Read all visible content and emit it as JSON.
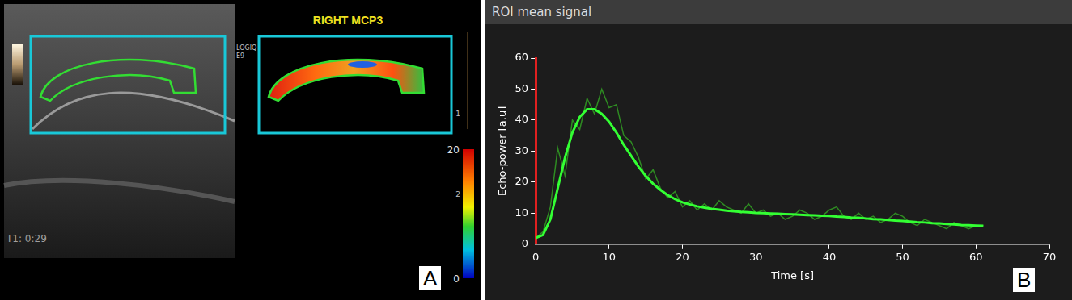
{
  "panel_a": {
    "label": "A",
    "title": "RIGHT MCP3",
    "device": [
      "LOGIQ",
      "E9"
    ],
    "timer": "T1: 0:29",
    "depth_marks": [
      1,
      2
    ],
    "color_bar": {
      "range": [
        0,
        20
      ],
      "ticks": [
        0,
        20
      ]
    }
  },
  "chart_data": {
    "type": "line",
    "title": "ROI mean signal",
    "panel_label": "B",
    "x_label": "Time [s]",
    "y_label": "Echo-power [a.u]",
    "x": [
      0,
      1,
      2,
      3,
      4,
      5,
      6,
      7,
      8,
      9,
      10,
      11,
      12,
      13,
      14,
      15,
      16,
      17,
      18,
      19,
      20,
      21,
      22,
      23,
      24,
      25,
      26,
      27,
      28,
      29,
      30,
      31,
      32,
      33,
      34,
      35,
      36,
      37,
      38,
      39,
      40,
      41,
      42,
      43,
      44,
      45,
      46,
      47,
      48,
      49,
      50,
      51,
      52,
      53,
      54,
      55,
      56,
      57,
      58,
      59,
      60,
      61
    ],
    "series": [
      {
        "color": "#2e8b22",
        "line_style": "solid",
        "marker": "none",
        "values": [
          2,
          4,
          12,
          31,
          22,
          40,
          37,
          47,
          42,
          50,
          44,
          45,
          35,
          33,
          28,
          21,
          24,
          18,
          15,
          17,
          12,
          14,
          11,
          13,
          11,
          14,
          12,
          11,
          10,
          13,
          10,
          11,
          9,
          10,
          8,
          9,
          11,
          10,
          8,
          9,
          11,
          12,
          9,
          8,
          10,
          8,
          9,
          7,
          8,
          10,
          9,
          7,
          6,
          8,
          7,
          6,
          5,
          7,
          6,
          5,
          6,
          6
        ]
      },
      {
        "color": "#33ff33",
        "line_style": "solid",
        "marker": "none",
        "values": [
          2,
          3,
          8,
          18,
          28,
          36,
          41,
          43.5,
          43.5,
          42,
          39.5,
          36,
          32,
          28.5,
          25,
          22,
          19.5,
          17.5,
          15.8,
          14.5,
          13.5,
          12.8,
          12.2,
          11.8,
          11.4,
          11.1,
          10.8,
          10.6,
          10.4,
          10.3,
          10.1,
          10,
          9.9,
          9.8,
          9.7,
          9.6,
          9.5,
          9.4,
          9.3,
          9.2,
          9.1,
          8.9,
          8.8,
          8.6,
          8.5,
          8.3,
          8.1,
          8,
          7.8,
          7.6,
          7.5,
          7.3,
          7.1,
          7,
          6.8,
          6.7,
          6.5,
          6.4,
          6.2,
          6.1,
          6,
          5.9
        ]
      }
    ],
    "xlim": [
      0,
      70
    ],
    "xticks": [
      0,
      10,
      20,
      30,
      40,
      50,
      60,
      70
    ],
    "ylim": [
      0,
      60
    ],
    "yticks": [
      0,
      10,
      20,
      30,
      40,
      50,
      60
    ],
    "grid": false
  }
}
